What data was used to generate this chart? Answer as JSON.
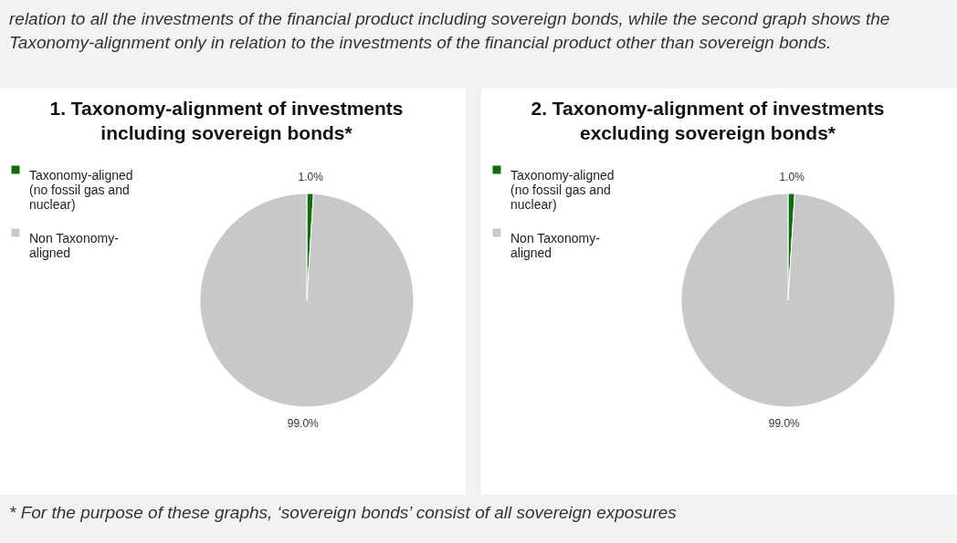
{
  "chart_data": [
    {
      "type": "pie",
      "title": "1. Taxonomy-alignment of investments including sovereign bonds*",
      "categories": [
        "Taxonomy-aligned (no fossil gas and nuclear)",
        "Non Taxonomy-aligned"
      ],
      "values": [
        1.0,
        99.0
      ],
      "colors": [
        "#0b6e0b",
        "#c8c8c8"
      ],
      "value_labels": [
        "1.0%",
        "99.0%"
      ],
      "legend": "left",
      "annotations": [
        "relation to all the investments of the financial product including sovereign bonds, while the second graph shows the Taxonomy-alignment only in relation to the investments of the financial product other than sovereign bonds."
      ]
    },
    {
      "type": "pie",
      "title": "2. Taxonomy-alignment of investments excluding sovereign bonds*",
      "categories": [
        "Taxonomy-aligned (no fossil gas and nuclear)",
        "Non Taxonomy-aligned"
      ],
      "values": [
        1.0,
        99.0
      ],
      "colors": [
        "#0b6e0b",
        "#c8c8c8"
      ],
      "value_labels": [
        "1.0%",
        "99.0%"
      ],
      "legend": "left",
      "annotations": [
        "* For the purpose of these graphs, ‘sovereign bonds’ consist of all sovereign exposures"
      ]
    }
  ]
}
